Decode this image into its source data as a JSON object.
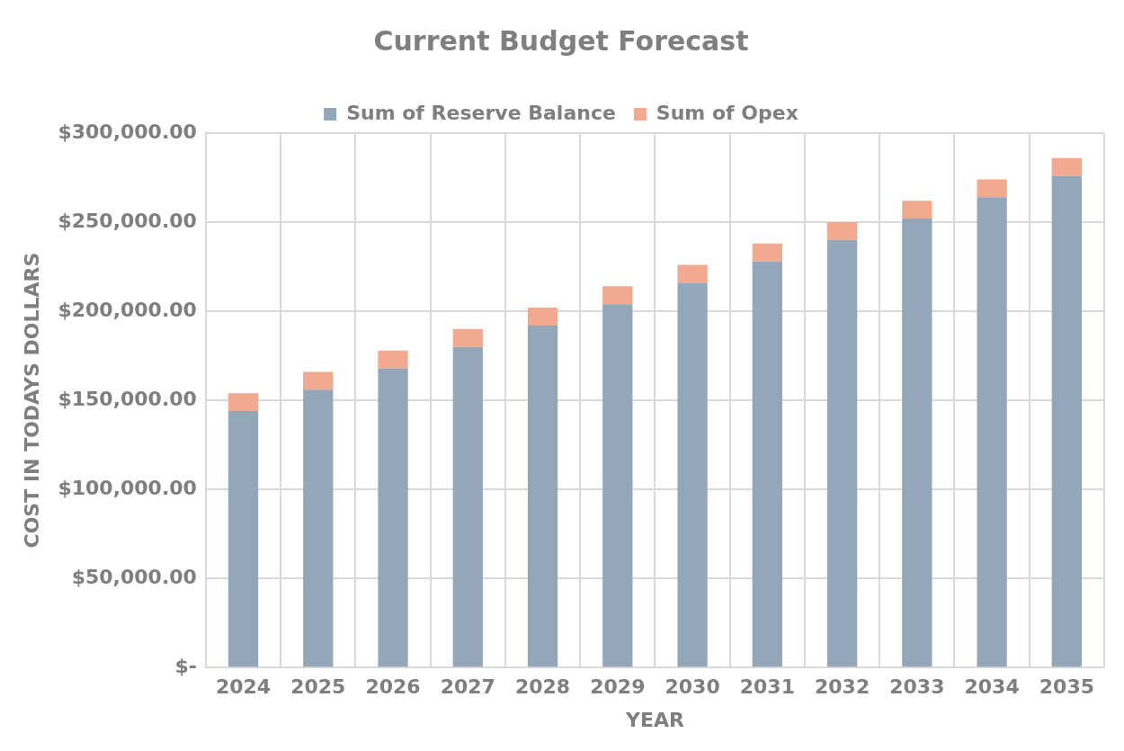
{
  "chart_data": {
    "type": "bar",
    "title": "Current Budget Forecast",
    "xlabel": "YEAR",
    "ylabel": "COST IN TODAYS DOLLARS",
    "categories": [
      "2024",
      "2025",
      "2026",
      "2027",
      "2028",
      "2029",
      "2030",
      "2031",
      "2032",
      "2033",
      "2034",
      "2035"
    ],
    "stacked": true,
    "series": [
      {
        "name": "Sum of Reserve Balance",
        "color": "#94a7b9",
        "values": [
          144000,
          156000,
          168000,
          180000,
          192000,
          204000,
          216000,
          228000,
          240000,
          252000,
          264000,
          276000
        ]
      },
      {
        "name": "Sum of Opex",
        "color": "#f1a98f",
        "values": [
          10000,
          10000,
          10000,
          10000,
          10000,
          10000,
          10000,
          10000,
          10000,
          10000,
          10000,
          10000
        ]
      }
    ],
    "ylim": [
      0,
      300000
    ],
    "yticks": [
      {
        "value": 0,
        "label": "$-"
      },
      {
        "value": 50000,
        "label": "$50,000.00"
      },
      {
        "value": 100000,
        "label": "$100,000.00"
      },
      {
        "value": 150000,
        "label": "$150,000.00"
      },
      {
        "value": 200000,
        "label": "$200,000.00"
      },
      {
        "value": 250000,
        "label": "$250,000.00"
      },
      {
        "value": 300000,
        "label": "$300,000.00"
      }
    ],
    "grid": true,
    "legend": "top"
  }
}
